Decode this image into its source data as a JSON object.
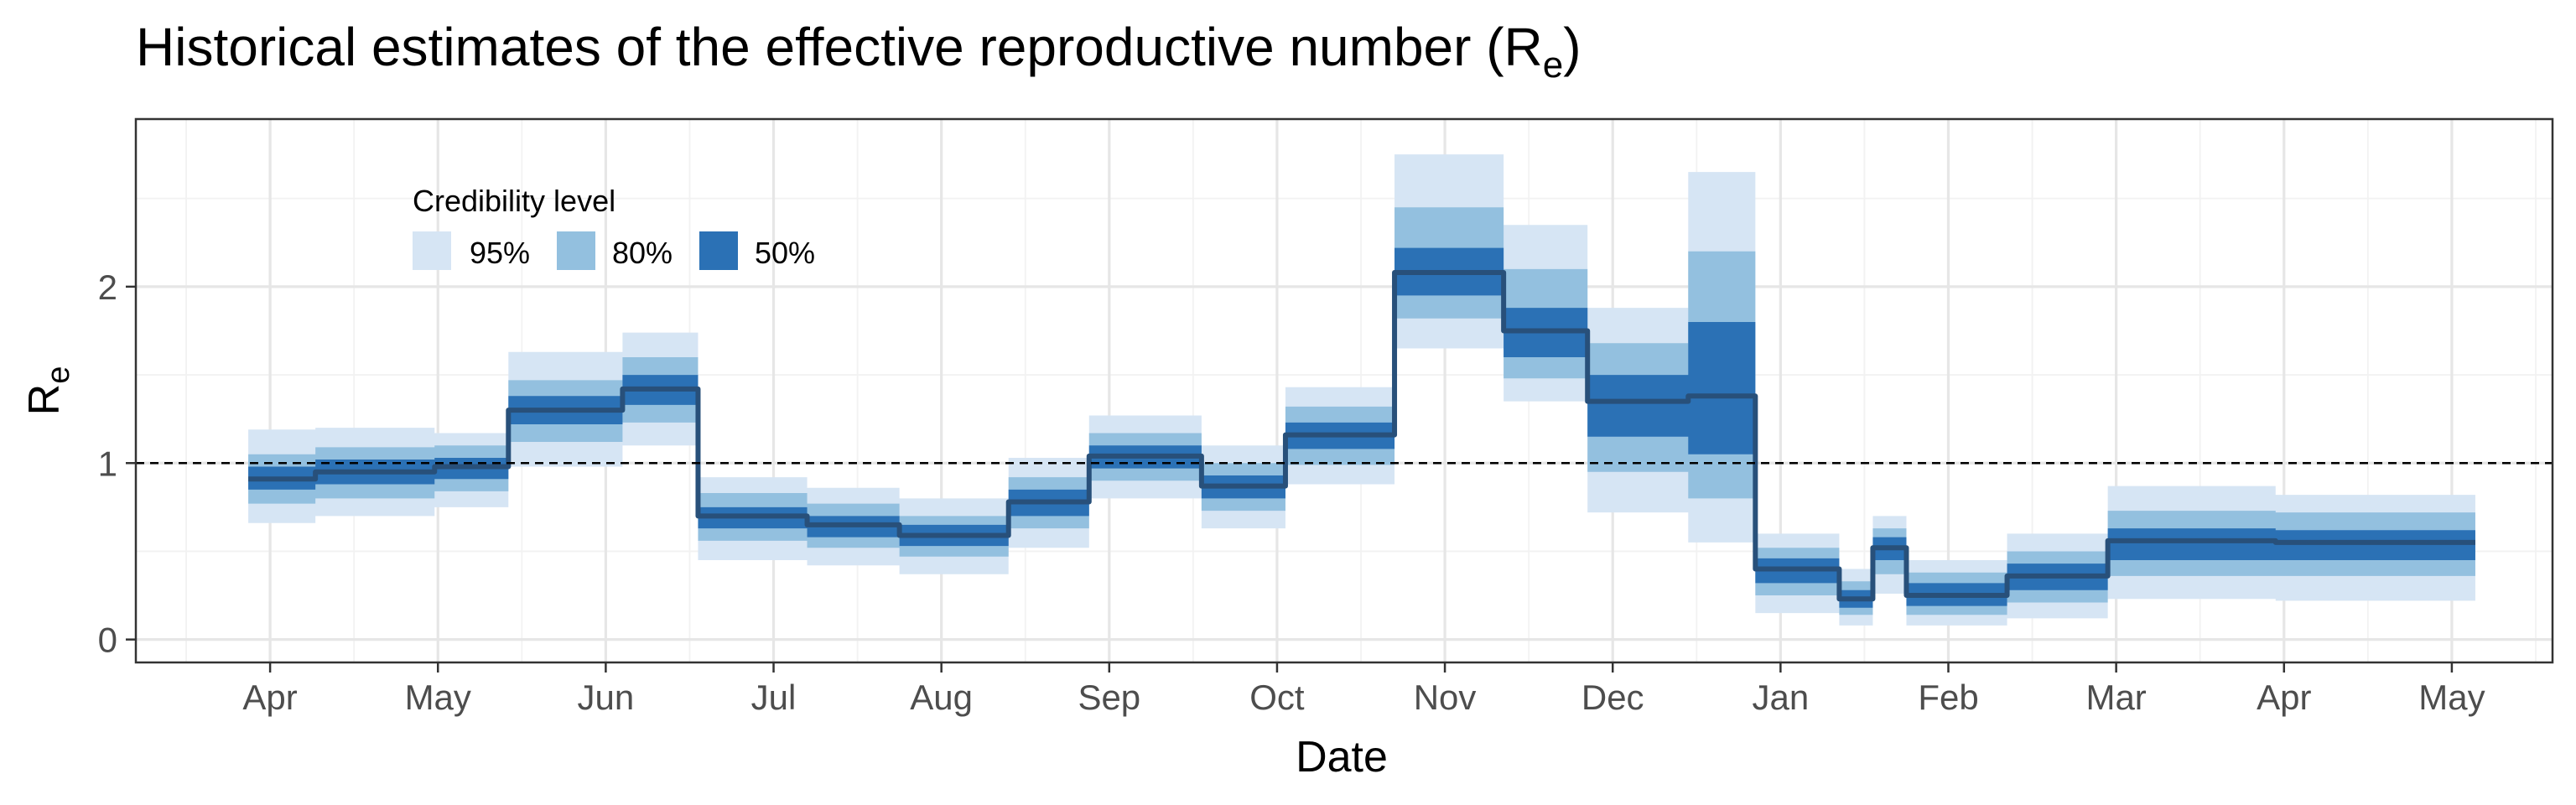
{
  "chart_data": {
    "type": "area",
    "title": "Historical estimates of the effective reproductive number (R",
    "title_subscript": "e",
    "title_suffix": ")",
    "xlabel": "Date",
    "ylabel": "R",
    "ylabel_subscript": "e",
    "x_tick_labels": [
      "Apr",
      "May",
      "Jun",
      "Jul",
      "Aug",
      "Sep",
      "Oct",
      "Nov",
      "Dec",
      "Jan",
      "Feb",
      "Mar",
      "Apr",
      "May"
    ],
    "y_ticks": [
      0,
      1,
      2
    ],
    "ylim": [
      -0.13,
      2.95
    ],
    "xlim": [
      -0.8,
      13.6
    ],
    "reference_line": {
      "y": 1,
      "style": "dashed"
    },
    "grid": true,
    "legend": {
      "title": "Credibility level",
      "position": "top-left",
      "items": [
        {
          "label": "95%",
          "color": "#d6e5f4"
        },
        {
          "label": "80%",
          "color": "#93c0df"
        },
        {
          "label": "50%",
          "color": "#2b71b5"
        }
      ]
    },
    "median_color": "#28507a",
    "segments": [
      {
        "x0": -0.13,
        "x1": 0.27,
        "median": 0.91,
        "ci50": [
          0.85,
          0.98
        ],
        "ci80": [
          0.77,
          1.05
        ],
        "ci95": [
          0.66,
          1.19
        ]
      },
      {
        "x0": 0.27,
        "x1": 0.98,
        "median": 0.95,
        "ci50": [
          0.88,
          1.02
        ],
        "ci80": [
          0.8,
          1.09
        ],
        "ci95": [
          0.7,
          1.2
        ]
      },
      {
        "x0": 0.98,
        "x1": 1.42,
        "median": 0.98,
        "ci50": [
          0.91,
          1.03
        ],
        "ci80": [
          0.84,
          1.1
        ],
        "ci95": [
          0.75,
          1.17
        ]
      },
      {
        "x0": 1.42,
        "x1": 2.1,
        "median": 1.3,
        "ci50": [
          1.22,
          1.38
        ],
        "ci80": [
          1.12,
          1.47
        ],
        "ci95": [
          0.98,
          1.63
        ]
      },
      {
        "x0": 2.1,
        "x1": 2.55,
        "median": 1.42,
        "ci50": [
          1.33,
          1.5
        ],
        "ci80": [
          1.23,
          1.6
        ],
        "ci95": [
          1.1,
          1.74
        ]
      },
      {
        "x0": 2.55,
        "x1": 3.2,
        "median": 0.7,
        "ci50": [
          0.63,
          0.75
        ],
        "ci80": [
          0.56,
          0.83
        ],
        "ci95": [
          0.45,
          0.92
        ]
      },
      {
        "x0": 3.2,
        "x1": 3.75,
        "median": 0.65,
        "ci50": [
          0.58,
          0.7
        ],
        "ci80": [
          0.52,
          0.77
        ],
        "ci95": [
          0.42,
          0.86
        ]
      },
      {
        "x0": 3.75,
        "x1": 4.4,
        "median": 0.59,
        "ci50": [
          0.53,
          0.65
        ],
        "ci80": [
          0.47,
          0.7
        ],
        "ci95": [
          0.37,
          0.8
        ]
      },
      {
        "x0": 4.4,
        "x1": 4.88,
        "median": 0.78,
        "ci50": [
          0.7,
          0.85
        ],
        "ci80": [
          0.63,
          0.92
        ],
        "ci95": [
          0.52,
          1.03
        ]
      },
      {
        "x0": 4.88,
        "x1": 5.55,
        "median": 1.04,
        "ci50": [
          0.97,
          1.1
        ],
        "ci80": [
          0.9,
          1.17
        ],
        "ci95": [
          0.8,
          1.27
        ]
      },
      {
        "x0": 5.55,
        "x1": 6.05,
        "median": 0.87,
        "ci50": [
          0.8,
          0.93
        ],
        "ci80": [
          0.73,
          1.0
        ],
        "ci95": [
          0.63,
          1.1
        ]
      },
      {
        "x0": 6.05,
        "x1": 6.7,
        "median": 1.16,
        "ci50": [
          1.08,
          1.23
        ],
        "ci80": [
          0.99,
          1.32
        ],
        "ci95": [
          0.88,
          1.43
        ]
      },
      {
        "x0": 6.7,
        "x1": 7.35,
        "median": 2.08,
        "ci50": [
          1.95,
          2.22
        ],
        "ci80": [
          1.82,
          2.45
        ],
        "ci95": [
          1.65,
          2.75
        ]
      },
      {
        "x0": 7.35,
        "x1": 7.85,
        "median": 1.75,
        "ci50": [
          1.6,
          1.88
        ],
        "ci80": [
          1.48,
          2.1
        ],
        "ci95": [
          1.35,
          2.35
        ]
      },
      {
        "x0": 7.85,
        "x1": 8.45,
        "median": 1.35,
        "ci50": [
          1.15,
          1.5
        ],
        "ci80": [
          0.95,
          1.68
        ],
        "ci95": [
          0.72,
          1.88
        ]
      },
      {
        "x0": 8.45,
        "x1": 8.85,
        "median": 1.38,
        "ci50": [
          1.05,
          1.8
        ],
        "ci80": [
          0.8,
          2.2
        ],
        "ci95": [
          0.55,
          2.65
        ]
      },
      {
        "x0": 8.85,
        "x1": 9.35,
        "median": 0.4,
        "ci50": [
          0.32,
          0.46
        ],
        "ci80": [
          0.25,
          0.52
        ],
        "ci95": [
          0.15,
          0.6
        ]
      },
      {
        "x0": 9.35,
        "x1": 9.55,
        "median": 0.23,
        "ci50": [
          0.18,
          0.28
        ],
        "ci80": [
          0.14,
          0.33
        ],
        "ci95": [
          0.08,
          0.4
        ]
      },
      {
        "x0": 9.55,
        "x1": 9.75,
        "median": 0.52,
        "ci50": [
          0.45,
          0.58
        ],
        "ci80": [
          0.37,
          0.63
        ],
        "ci95": [
          0.26,
          0.7
        ]
      },
      {
        "x0": 9.75,
        "x1": 10.35,
        "median": 0.25,
        "ci50": [
          0.19,
          0.32
        ],
        "ci80": [
          0.14,
          0.38
        ],
        "ci95": [
          0.08,
          0.45
        ]
      },
      {
        "x0": 10.35,
        "x1": 10.95,
        "median": 0.36,
        "ci50": [
          0.28,
          0.43
        ],
        "ci80": [
          0.21,
          0.5
        ],
        "ci95": [
          0.12,
          0.6
        ]
      },
      {
        "x0": 10.95,
        "x1": 11.95,
        "median": 0.56,
        "ci50": [
          0.45,
          0.63
        ],
        "ci80": [
          0.36,
          0.73
        ],
        "ci95": [
          0.23,
          0.87
        ]
      },
      {
        "x0": 11.95,
        "x1": 13.14,
        "median": 0.55,
        "ci50": [
          0.45,
          0.62
        ],
        "ci80": [
          0.36,
          0.72
        ],
        "ci95": [
          0.22,
          0.82
        ]
      }
    ]
  }
}
